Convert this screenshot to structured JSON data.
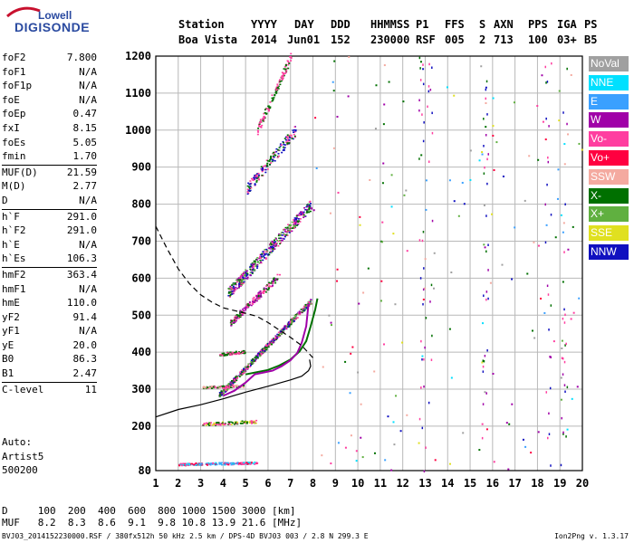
{
  "logo": {
    "line1": "Lowell",
    "line2": "DIGISONDE"
  },
  "header": {
    "labels": [
      "Station",
      "YYYY",
      "DAY",
      "DDD",
      "HHMMSS",
      "P1",
      "FFS",
      "S",
      "AXN",
      "PPS",
      "IGA",
      "PS"
    ],
    "values": [
      "Boa Vista",
      "2014",
      "Jun01",
      "152",
      "230000",
      "RSF",
      "005",
      "2",
      "713",
      "100",
      "03+",
      "B5"
    ]
  },
  "scaled_groups": [
    [
      {
        "name": "foF2",
        "value": "7.800"
      },
      {
        "name": "foF1",
        "value": "N/A"
      },
      {
        "name": "foF1p",
        "value": "N/A"
      },
      {
        "name": "foE",
        "value": "N/A"
      },
      {
        "name": "foEp",
        "value": "0.47"
      },
      {
        "name": "fxI",
        "value": "8.15"
      },
      {
        "name": "foEs",
        "value": "5.05"
      },
      {
        "name": "fmin",
        "value": "1.70"
      }
    ],
    [
      {
        "name": "MUF(D)",
        "value": "21.59"
      },
      {
        "name": "M(D)",
        "value": "2.77"
      },
      {
        "name": "D",
        "value": "N/A"
      }
    ],
    [
      {
        "name": "h`F",
        "value": "291.0"
      },
      {
        "name": "h`F2",
        "value": "291.0"
      },
      {
        "name": "h`E",
        "value": "N/A"
      },
      {
        "name": "h`Es",
        "value": "106.3"
      }
    ],
    [
      {
        "name": "hmF2",
        "value": "363.4"
      },
      {
        "name": "hmF1",
        "value": "N/A"
      },
      {
        "name": "hmE",
        "value": "110.0"
      },
      {
        "name": "yF2",
        "value": "91.4"
      },
      {
        "name": "yF1",
        "value": "N/A"
      },
      {
        "name": "yE",
        "value": "20.0"
      },
      {
        "name": "B0",
        "value": "86.3"
      },
      {
        "name": "B1",
        "value": "2.47"
      }
    ],
    [
      {
        "name": "C-level",
        "value": "11"
      }
    ]
  ],
  "autoscaling": {
    "line1": "Auto:",
    "line2": "Artist5",
    "line3": "500200"
  },
  "legend": [
    {
      "label": "NoVal",
      "color": "#a0a0a0"
    },
    {
      "label": "NNE",
      "color": "#00e0ff"
    },
    {
      "label": "E",
      "color": "#3aa0ff"
    },
    {
      "label": "W",
      "color": "#a000a8"
    },
    {
      "label": "Vo-",
      "color": "#ff3ea0"
    },
    {
      "label": "Vo+",
      "color": "#ff0040"
    },
    {
      "label": "SSW",
      "color": "#f4aaa0"
    },
    {
      "label": "X-",
      "color": "#007000"
    },
    {
      "label": "X+",
      "color": "#60b040"
    },
    {
      "label": "SSE",
      "color": "#e0e020"
    },
    {
      "label": "NNW",
      "color": "#1010c0"
    }
  ],
  "footer": {
    "d_row": "D     100  200  400  600  800 1000 1500 3000 [km]",
    "muf_row": "MUF   8.2  8.3  8.6  9.1  9.8 10.8 13.9 21.6 [MHz]",
    "file_line": "BVJ03_2014152230000.RSF / 380fx512h 50 kHz 2.5 km / DPS-4D BVJ03 003 / 2.8 N 299.3 E",
    "version": "Ion2Png v. 1.3.17"
  },
  "chart_data": {
    "type": "scatter",
    "xlim": [
      1,
      20
    ],
    "ylim": [
      80,
      1200
    ],
    "x_ticks": [
      1,
      2,
      3,
      4,
      5,
      6,
      7,
      8,
      9,
      10,
      11,
      12,
      13,
      14,
      15,
      16,
      17,
      18,
      19,
      20
    ],
    "y_ticks": [
      80,
      200,
      300,
      400,
      500,
      600,
      700,
      800,
      900,
      1000,
      1100,
      1200
    ],
    "grid": true,
    "xlabel": "",
    "ylabel": "",
    "series": [
      {
        "name": "X-",
        "color": "#007000",
        "style": "line",
        "width": 2,
        "points": [
          [
            5.0,
            340
          ],
          [
            5.5,
            346
          ],
          [
            6.0,
            352
          ],
          [
            6.5,
            364
          ],
          [
            7.0,
            380
          ],
          [
            7.4,
            402
          ],
          [
            7.7,
            430
          ],
          [
            7.9,
            470
          ],
          [
            8.1,
            515
          ],
          [
            8.2,
            545
          ]
        ]
      },
      {
        "name": "W",
        "color": "#a000a8",
        "style": "line",
        "width": 2,
        "points": [
          [
            4.0,
            282
          ],
          [
            4.5,
            296
          ],
          [
            5.0,
            318
          ],
          [
            5.4,
            340
          ],
          [
            5.8,
            345
          ],
          [
            6.2,
            350
          ],
          [
            6.6,
            362
          ],
          [
            7.0,
            378
          ],
          [
            7.3,
            398
          ],
          [
            7.5,
            425
          ],
          [
            7.7,
            470
          ],
          [
            7.8,
            530
          ]
        ]
      },
      {
        "name": "",
        "color": "#000000",
        "style": "line",
        "width": 1.2,
        "points": [
          [
            1.0,
            225
          ],
          [
            2.0,
            245
          ],
          [
            3.0,
            258
          ],
          [
            4.0,
            274
          ],
          [
            5.0,
            292
          ],
          [
            6.0,
            308
          ],
          [
            7.0,
            325
          ],
          [
            7.5,
            335
          ],
          [
            7.8,
            350
          ],
          [
            7.9,
            362
          ],
          [
            7.85,
            380
          ]
        ]
      },
      {
        "name": "",
        "color": "#000000",
        "style": "dashed",
        "width": 1.2,
        "points": [
          [
            1.0,
            740
          ],
          [
            1.5,
            680
          ],
          [
            2.0,
            625
          ],
          [
            2.5,
            585
          ],
          [
            3.0,
            555
          ],
          [
            3.5,
            535
          ],
          [
            4.0,
            520
          ],
          [
            5.0,
            505
          ],
          [
            5.5,
            497
          ],
          [
            6.0,
            480
          ],
          [
            7.0,
            440
          ],
          [
            7.5,
            418
          ],
          [
            8.0,
            385
          ]
        ]
      }
    ]
  }
}
